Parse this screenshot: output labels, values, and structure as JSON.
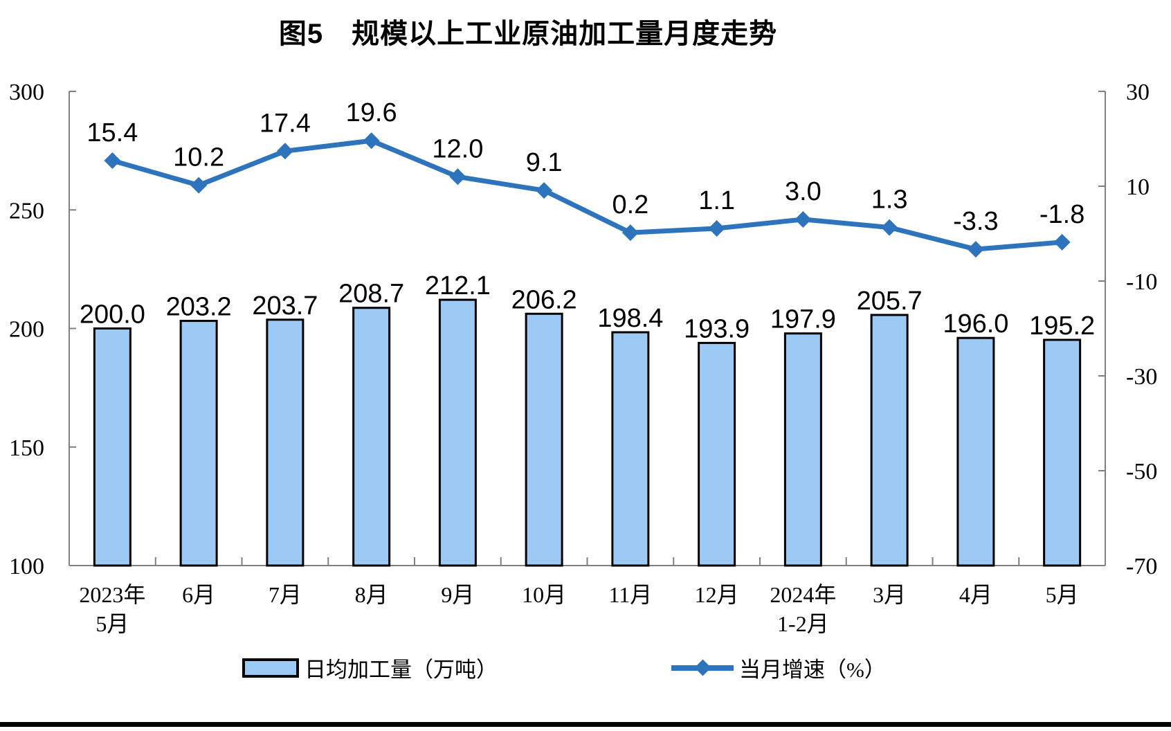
{
  "chart_data": {
    "type": "combo-bar-line",
    "title": "图5　规模以上工业原油加工量月度走势",
    "categories": [
      [
        "2023年",
        "5月"
      ],
      [
        "6月"
      ],
      [
        "7月"
      ],
      [
        "8月"
      ],
      [
        "9月"
      ],
      [
        "10月"
      ],
      [
        "11月"
      ],
      [
        "12月"
      ],
      [
        "2024年",
        "1-2月"
      ],
      [
        "3月"
      ],
      [
        "4月"
      ],
      [
        "5月"
      ]
    ],
    "series": [
      {
        "name": "日均加工量（万吨）",
        "type": "bar",
        "axis": "left",
        "values": [
          200.0,
          203.2,
          203.7,
          208.7,
          212.1,
          206.2,
          198.4,
          193.9,
          197.9,
          205.7,
          196.0,
          195.2
        ]
      },
      {
        "name": "当月增速（%）",
        "type": "line",
        "axis": "right",
        "values": [
          15.4,
          10.2,
          17.4,
          19.6,
          12.0,
          9.1,
          0.2,
          1.1,
          3.0,
          1.3,
          -3.3,
          -1.8
        ]
      }
    ],
    "left_axis": {
      "min": 100,
      "max": 300,
      "ticks": [
        300,
        250,
        200,
        150,
        100
      ]
    },
    "right_axis": {
      "min": -70,
      "max": 30,
      "ticks": [
        30,
        10,
        -10,
        -30,
        -50,
        -70
      ]
    },
    "grid": false,
    "legend_position": "bottom",
    "colors": {
      "bar_fill": "#9DC9F5",
      "bar_border": "#000000",
      "line": "#2E74BD",
      "axis": "#7F7F7F",
      "text": "#000000"
    }
  }
}
